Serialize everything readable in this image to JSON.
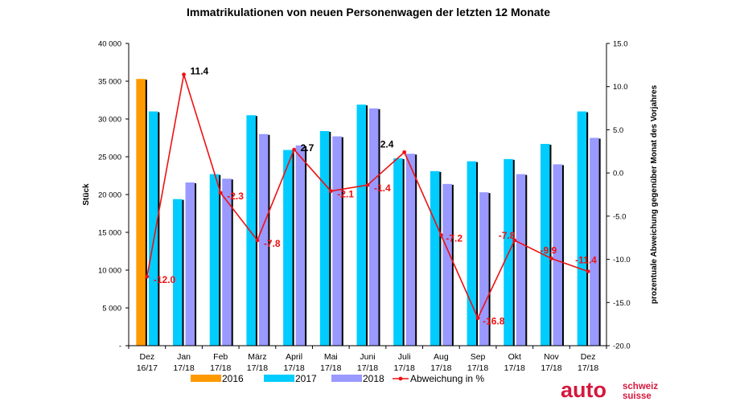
{
  "chart_data": {
    "type": "bar",
    "title": "Immatrikulationen von neuen Personenwagen der letzten 12 Monate",
    "ylabel": "Stück",
    "y2label": "prozentuale Abweichung gegenüber Monat des Vorjahres",
    "ylim": [
      0,
      40000
    ],
    "y2lim": [
      -20,
      15
    ],
    "yticks": [
      "-",
      "5 000",
      "10 000",
      "15 000",
      "20 000",
      "25 000",
      "30 000",
      "35 000",
      "40 000"
    ],
    "y2ticks": [
      "-20.0",
      "-15.0",
      "-10.0",
      "-5.0",
      "0.0",
      "5.0",
      "10.0",
      "15.0"
    ],
    "categories": [
      [
        "Dez",
        "16/17"
      ],
      [
        "Jan",
        "17/18"
      ],
      [
        "Feb",
        "17/18"
      ],
      [
        "März",
        "17/18"
      ],
      [
        "April",
        "17/18"
      ],
      [
        "Mai",
        "17/18"
      ],
      [
        "Juni",
        "17/18"
      ],
      [
        "Juli",
        "17/18"
      ],
      [
        "Aug",
        "17/18"
      ],
      [
        "Sep",
        "17/18"
      ],
      [
        "Okt",
        "17/18"
      ],
      [
        "Nov",
        "17/18"
      ],
      [
        "Dez",
        "17/18"
      ]
    ],
    "series": [
      {
        "name": "2016",
        "color": "#ff9900",
        "values": [
          35300,
          null,
          null,
          null,
          null,
          null,
          null,
          null,
          null,
          null,
          null,
          null,
          null
        ]
      },
      {
        "name": "2017",
        "color": "#00ccff",
        "values": [
          31000,
          19400,
          22700,
          30500,
          25900,
          28400,
          31900,
          24800,
          23100,
          24400,
          24700,
          26700,
          31000
        ]
      },
      {
        "name": "2018",
        "color": "#9999ff",
        "values": [
          null,
          21600,
          22100,
          28000,
          26500,
          27700,
          31400,
          25400,
          21400,
          20300,
          22700,
          24000,
          27500
        ]
      }
    ],
    "line": {
      "name": "Abweichung in %",
      "color": "#ee1111",
      "axis": "right",
      "values": [
        -12.0,
        11.4,
        -2.3,
        -7.8,
        2.7,
        -2.1,
        -1.4,
        2.4,
        -7.2,
        -16.8,
        -7.8,
        -9.9,
        -11.4
      ],
      "labels": [
        "-12.0",
        "11.4",
        "-2.3",
        "-7.8",
        "2.7",
        "-2.1",
        "-1.4",
        "2.4",
        "-7.2",
        "-16.8",
        "-7.8",
        "-9.9",
        "-11.4"
      ]
    },
    "legend": [
      "2016",
      "2017",
      "2018",
      "Abweichung in %"
    ],
    "legend_position": "bottom",
    "grid": false
  },
  "logo": {
    "main": "auto",
    "line1": "schweiz",
    "line2": "suisse"
  }
}
